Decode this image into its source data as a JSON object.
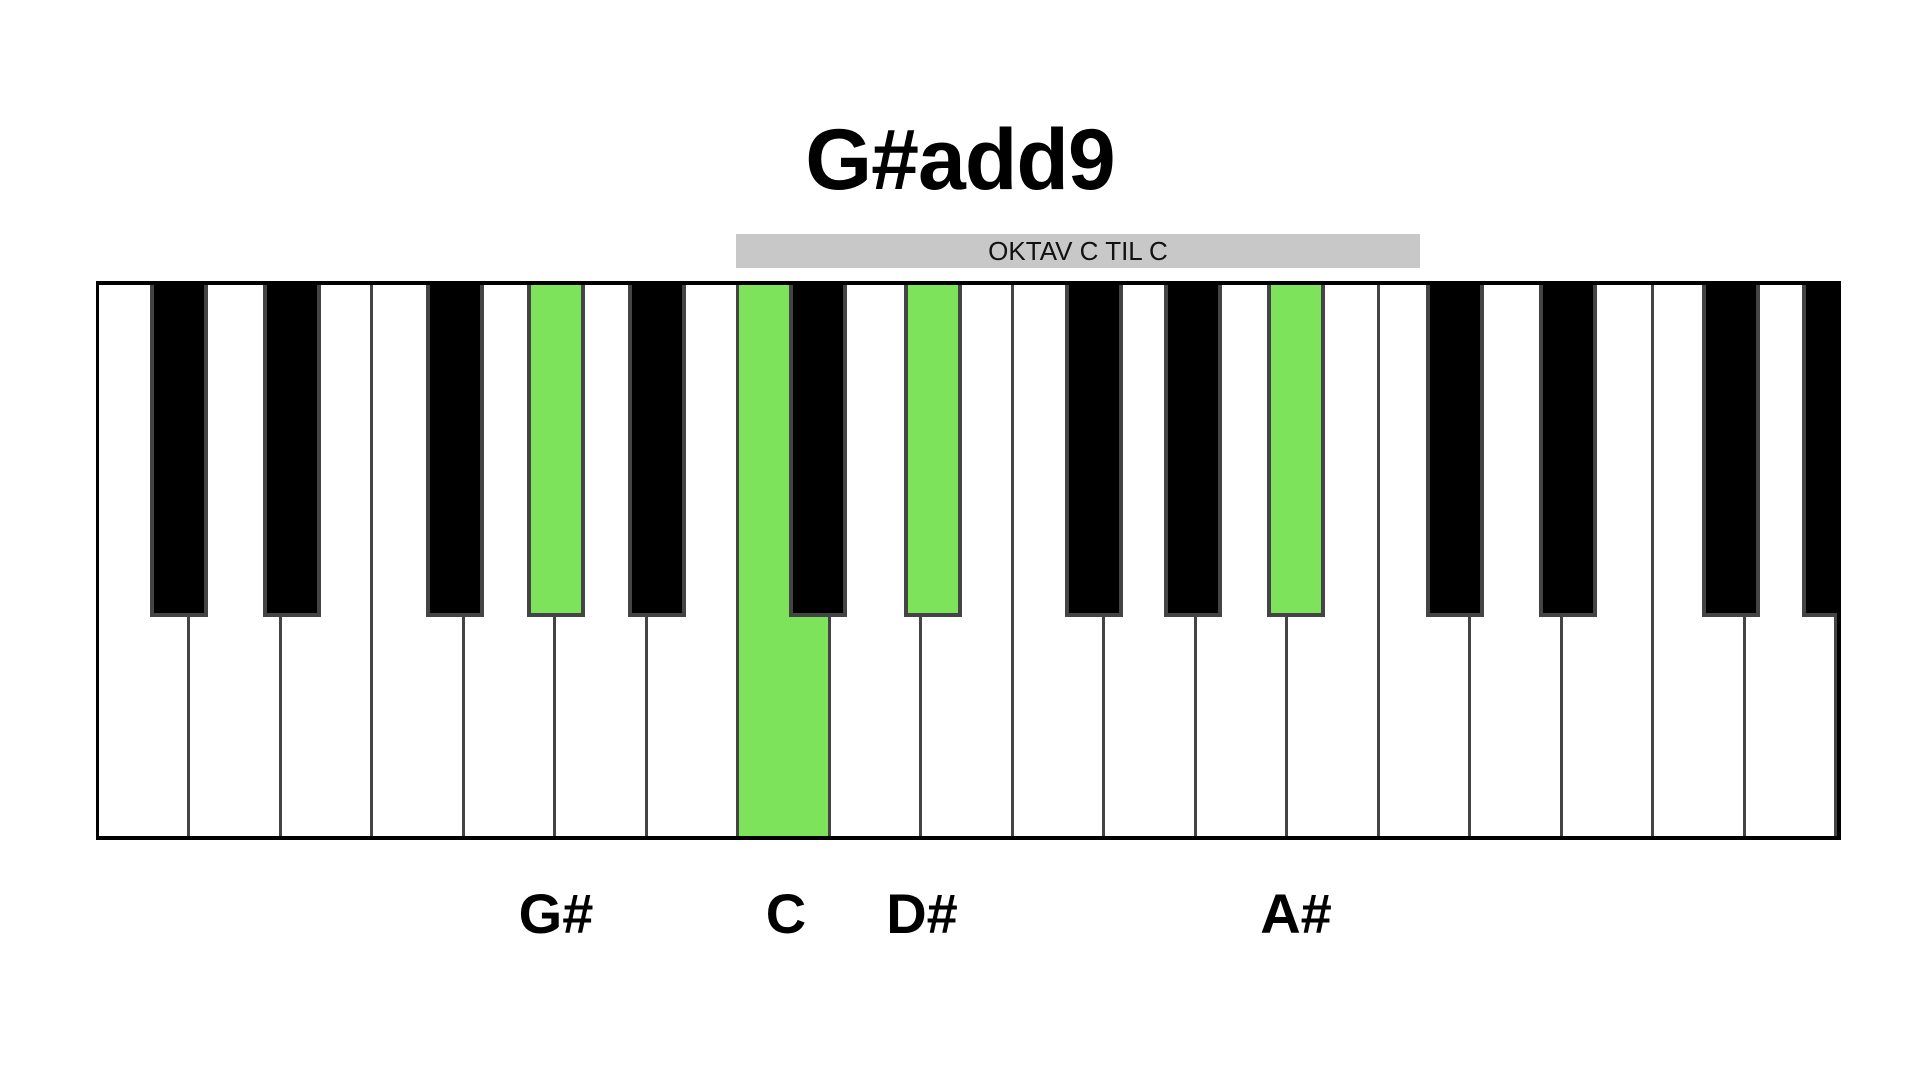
{
  "title": "G#add9",
  "octave_label": "OKTAV C TIL C",
  "colors": {
    "highlight": "#7de35a",
    "black_key": "#000000",
    "white_key": "#ffffff",
    "octave_bar": "#c8c8c8"
  },
  "keyboard": {
    "white_key_count": 19,
    "highlighted_white_keys": [
      7
    ],
    "black_keys": [
      {
        "highlighted": false
      },
      {
        "highlighted": false
      },
      {
        "highlighted": false
      },
      {
        "highlighted": true
      },
      {
        "highlighted": false
      },
      {
        "highlighted": false
      },
      {
        "highlighted": true
      },
      {
        "highlighted": false
      },
      {
        "highlighted": false
      },
      {
        "highlighted": true
      },
      {
        "highlighted": false
      },
      {
        "highlighted": false
      },
      {
        "highlighted": false
      },
      {
        "highlighted": false
      }
    ]
  },
  "note_labels": [
    "G#",
    "C",
    "D#",
    "A#"
  ]
}
